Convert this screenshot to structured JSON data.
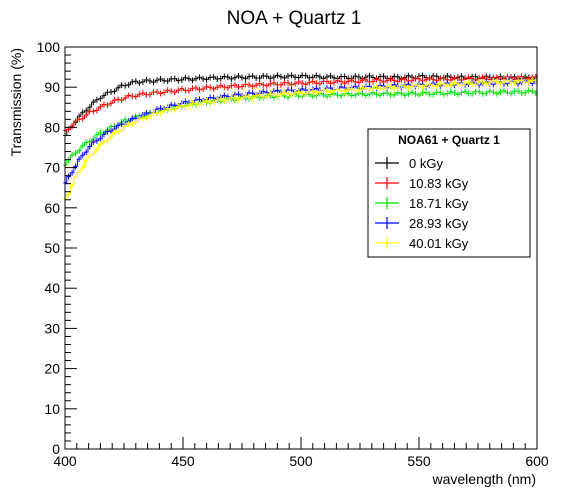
{
  "chart_data": {
    "type": "line",
    "title": "NOA + Quartz 1",
    "xlabel": "wavelength (nm)",
    "ylabel": "Transmission (%)",
    "xlim": [
      400,
      600
    ],
    "ylim": [
      0,
      100
    ],
    "x_ticks": [
      400,
      450,
      500,
      550,
      600
    ],
    "y_ticks": [
      0,
      10,
      20,
      30,
      40,
      50,
      60,
      70,
      80,
      90,
      100
    ],
    "grid": false,
    "legend_title": "NOA61 + Quartz 1",
    "legend_position": "right",
    "series": [
      {
        "name": "0 kGy",
        "color": "#000000",
        "x": [
          400,
          405,
          410,
          415,
          420,
          425,
          430,
          440,
          450,
          460,
          470,
          480,
          490,
          500,
          510,
          520,
          530,
          540,
          550,
          560,
          570,
          580,
          590,
          600
        ],
        "values": [
          78,
          82,
          85,
          87.5,
          89,
          90.5,
          91.3,
          91.7,
          92,
          92.2,
          92.4,
          92.5,
          92.6,
          92.7,
          92.5,
          92.4,
          92.5,
          92.4,
          92.6,
          92.5,
          92.4,
          92.4,
          92.3,
          92.3
        ]
      },
      {
        "name": "10.83 kGy",
        "color": "#ff0000",
        "x": [
          400,
          405,
          410,
          415,
          420,
          425,
          430,
          440,
          450,
          460,
          470,
          480,
          490,
          500,
          510,
          520,
          530,
          540,
          550,
          560,
          570,
          580,
          590,
          600
        ],
        "values": [
          79,
          81.5,
          83.5,
          85,
          86.3,
          87.3,
          88,
          88.7,
          89.3,
          89.8,
          90.2,
          90.5,
          90.8,
          91,
          91.2,
          91.4,
          91.6,
          91.7,
          91.9,
          92,
          92.1,
          92.2,
          92.3,
          92.3
        ]
      },
      {
        "name": "18.71 kGy",
        "color": "#00dd00",
        "x": [
          400,
          405,
          410,
          415,
          420,
          425,
          430,
          440,
          450,
          460,
          470,
          480,
          490,
          500,
          510,
          520,
          530,
          540,
          550,
          560,
          570,
          580,
          590,
          600
        ],
        "values": [
          71,
          74,
          76.5,
          78.5,
          80,
          81.5,
          82.5,
          84,
          85.5,
          86.3,
          87,
          87.5,
          87.8,
          88,
          88.1,
          88.2,
          88.3,
          88.3,
          88.4,
          88.5,
          88.6,
          88.7,
          88.8,
          88.9
        ]
      },
      {
        "name": "28.93 kGy",
        "color": "#0000ff",
        "x": [
          400,
          405,
          410,
          415,
          420,
          425,
          430,
          440,
          450,
          460,
          470,
          480,
          490,
          500,
          510,
          520,
          530,
          540,
          550,
          560,
          570,
          580,
          590,
          600
        ],
        "values": [
          66,
          71,
          75,
          77.5,
          79.5,
          81,
          82.3,
          84.5,
          86,
          87,
          87.8,
          88.4,
          88.9,
          89.2,
          89.5,
          89.8,
          90,
          90.3,
          90.5,
          90.7,
          90.9,
          91,
          91.2,
          91.3
        ]
      },
      {
        "name": "40.01 kGy",
        "color": "#ffff00",
        "x": [
          400,
          405,
          410,
          415,
          420,
          425,
          430,
          440,
          450,
          460,
          470,
          480,
          490,
          500,
          510,
          520,
          530,
          540,
          550,
          560,
          570,
          580,
          590,
          600
        ],
        "values": [
          62,
          68,
          72.5,
          75.5,
          78,
          80,
          81.5,
          83.8,
          85.3,
          86.3,
          87.1,
          87.7,
          88.2,
          88.6,
          89,
          89.3,
          89.7,
          90,
          90.3,
          90.6,
          90.9,
          91.2,
          91.4,
          91.5
        ]
      }
    ]
  }
}
